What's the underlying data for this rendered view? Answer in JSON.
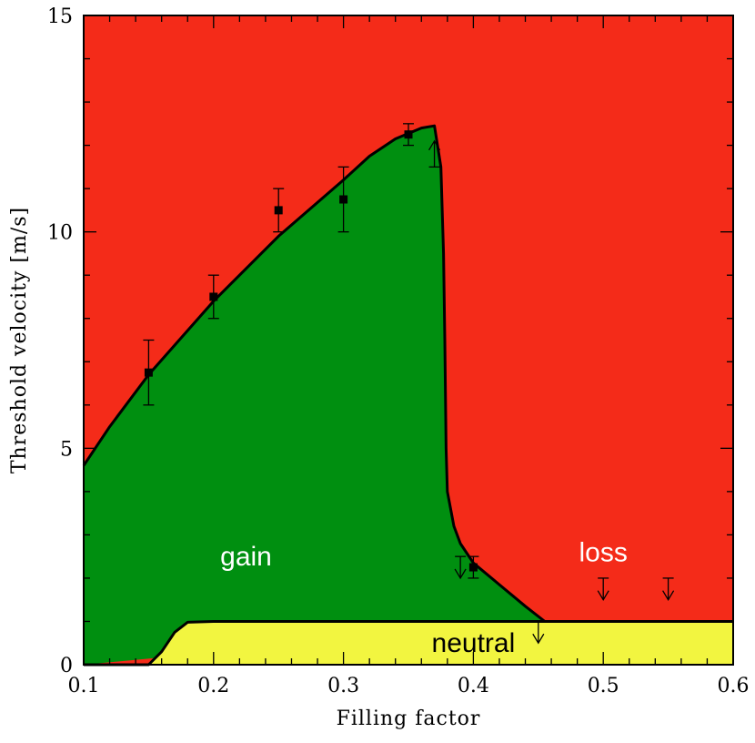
{
  "chart_data": {
    "type": "area",
    "title": "",
    "xlabel": "Filling factor",
    "ylabel": "Threshold velocity [m/s]",
    "xlim": [
      0.1,
      0.6
    ],
    "ylim": [
      0,
      15
    ],
    "x_ticks": [
      0.1,
      0.2,
      0.3,
      0.4,
      0.5,
      0.6
    ],
    "x_tick_labels": [
      "0.1",
      "0.2",
      "0.3",
      "0.4",
      "0.5",
      "0.6"
    ],
    "y_ticks": [
      0,
      5,
      10,
      15
    ],
    "y_tick_labels": [
      "0",
      "5",
      "10",
      "15"
    ],
    "grid": false,
    "regions": [
      {
        "name": "loss",
        "label": "loss",
        "color": "#f42b19",
        "label_color": "#ffffff",
        "label_pos": [
          0.5,
          2.6
        ]
      },
      {
        "name": "gain",
        "label": "gain",
        "color": "#008f10",
        "label_color": "#ffffff",
        "label_pos": [
          0.225,
          2.5
        ]
      },
      {
        "name": "neutral",
        "label": "neutral",
        "color": "#f2f540",
        "label_color": "#000000",
        "label_pos": [
          0.4,
          0.5
        ]
      }
    ],
    "neutral_boundary": [
      [
        0.1,
        0
      ],
      [
        0.15,
        0
      ],
      [
        0.16,
        0.3
      ],
      [
        0.17,
        0.75
      ],
      [
        0.18,
        0.98
      ],
      [
        0.2,
        1.0
      ],
      [
        0.6,
        1.0
      ]
    ],
    "gain_boundary": [
      [
        0.1,
        4.6
      ],
      [
        0.12,
        5.5
      ],
      [
        0.15,
        6.7
      ],
      [
        0.2,
        8.4
      ],
      [
        0.25,
        9.9
      ],
      [
        0.3,
        11.2
      ],
      [
        0.32,
        11.75
      ],
      [
        0.34,
        12.15
      ],
      [
        0.36,
        12.4
      ],
      [
        0.37,
        12.45
      ],
      [
        0.375,
        11.5
      ],
      [
        0.377,
        9.5
      ],
      [
        0.378,
        7.5
      ],
      [
        0.379,
        5.0
      ],
      [
        0.38,
        4.0
      ],
      [
        0.385,
        3.2
      ],
      [
        0.39,
        2.8
      ],
      [
        0.4,
        2.35
      ],
      [
        0.42,
        1.85
      ],
      [
        0.44,
        1.35
      ],
      [
        0.455,
        1.0
      ]
    ],
    "measurements": [
      {
        "x": 0.15,
        "y": 6.75,
        "err_low": 0.75,
        "err_high": 0.75
      },
      {
        "x": 0.2,
        "y": 8.5,
        "err_low": 0.5,
        "err_high": 0.5
      },
      {
        "x": 0.25,
        "y": 10.5,
        "err_low": 0.5,
        "err_high": 0.5
      },
      {
        "x": 0.3,
        "y": 10.75,
        "err_low": 0.75,
        "err_high": 0.75
      },
      {
        "x": 0.35,
        "y": 12.25,
        "err_low": 0.25,
        "err_high": 0.25
      },
      {
        "x": 0.4,
        "y": 2.25,
        "err_low": 0.25,
        "err_high": 0.25
      }
    ],
    "lower_limits": [
      {
        "x": 0.37,
        "y": 11.5,
        "head_y": 12.1
      }
    ],
    "upper_limits": [
      {
        "x": 0.39,
        "y": 2.5,
        "head_y": 2.0
      },
      {
        "x": 0.45,
        "y": 1.0,
        "head_y": 0.5
      },
      {
        "x": 0.5,
        "y": 2.0,
        "head_y": 1.5
      },
      {
        "x": 0.55,
        "y": 2.0,
        "head_y": 1.5
      }
    ]
  }
}
